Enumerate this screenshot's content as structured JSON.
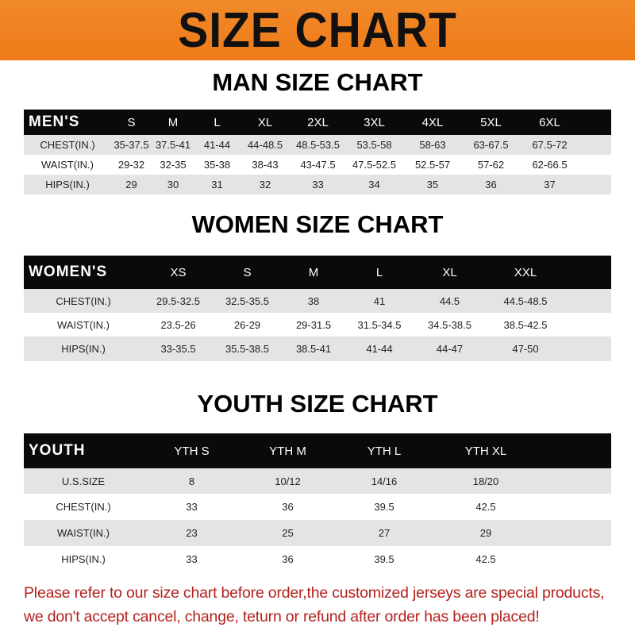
{
  "banner": {
    "title": "SIZE CHART",
    "color": "#ee7a18"
  },
  "men": {
    "title": "MAN SIZE CHART",
    "header": [
      "MEN'S",
      "S",
      "M",
      "L",
      "XL",
      "2XL",
      "3XL",
      "4XL",
      "5XL",
      "6XL"
    ],
    "rows": [
      [
        "CHEST(IN.)",
        "35-37.5",
        "37.5-41",
        "41-44",
        "44-48.5",
        "48.5-53.5",
        "53.5-58",
        "58-63",
        "63-67.5",
        "67.5-72"
      ],
      [
        "WAIST(IN.)",
        "29-32",
        "32-35",
        "35-38",
        "38-43",
        "43-47.5",
        "47.5-52.5",
        "52.5-57",
        "57-62",
        "62-66.5"
      ],
      [
        "HIPS(IN.)",
        "29",
        "30",
        "31",
        "32",
        "33",
        "34",
        "35",
        "36",
        "37"
      ]
    ]
  },
  "women": {
    "title": "WOMEN SIZE CHART",
    "header": [
      "WOMEN'S",
      "XS",
      "S",
      "M",
      "L",
      "XL",
      "XXL"
    ],
    "rows": [
      [
        "CHEST(IN.)",
        "29.5-32.5",
        "32.5-35.5",
        "38",
        "41",
        "44.5",
        "44.5-48.5"
      ],
      [
        "WAIST(IN.)",
        "23.5-26",
        "26-29",
        "29-31.5",
        "31.5-34.5",
        "34.5-38.5",
        "38.5-42.5"
      ],
      [
        "HIPS(IN.)",
        "33-35.5",
        "35.5-38.5",
        "38.5-41",
        "41-44",
        "44-47",
        "47-50"
      ]
    ]
  },
  "youth": {
    "title": "YOUTH SIZE CHART",
    "header": [
      "YOUTH",
      "YTH S",
      "YTH M",
      "YTH L",
      "YTH XL"
    ],
    "rows": [
      [
        "U.S.SIZE",
        "8",
        "10/12",
        "14/16",
        "18/20"
      ],
      [
        "CHEST(IN.)",
        "33",
        "36",
        "39.5",
        "42.5"
      ],
      [
        "WAISt(IN.)",
        "23",
        "25",
        "27",
        "29"
      ],
      [
        "HIPS(IN.)",
        "33",
        "36",
        "39.5",
        "42.5"
      ]
    ]
  },
  "note": {
    "line1": "Please refer to our size chart before order,the customized jerseys are special products,",
    "line2": "we don't accept cancel, change, teturn or refund after order has been placed!",
    "color": "#b3221f"
  }
}
